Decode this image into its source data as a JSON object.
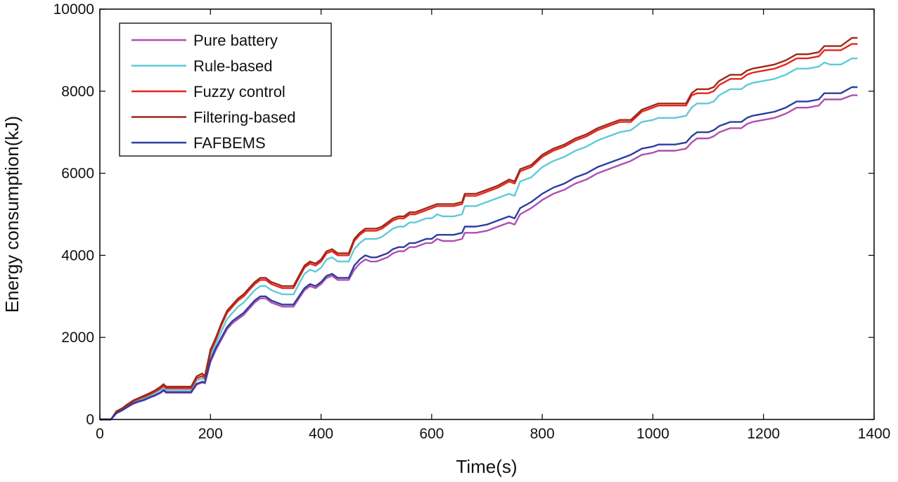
{
  "chart_data": {
    "type": "line",
    "xlabel": "Time(s)",
    "ylabel": "Energy consumption(kJ)",
    "xlim": [
      0,
      1400
    ],
    "ylim": [
      0,
      10000
    ],
    "x_ticks": [
      0,
      200,
      400,
      600,
      800,
      1000,
      1200,
      1400
    ],
    "y_ticks": [
      0,
      2000,
      4000,
      6000,
      8000,
      10000
    ],
    "grid": false,
    "legend_position": "top-left",
    "x": [
      0,
      20,
      30,
      40,
      50,
      60,
      70,
      80,
      90,
      100,
      110,
      115,
      120,
      130,
      140,
      150,
      160,
      165,
      175,
      185,
      190,
      200,
      210,
      220,
      230,
      240,
      250,
      260,
      270,
      280,
      290,
      300,
      310,
      320,
      330,
      340,
      350,
      360,
      370,
      380,
      390,
      400,
      410,
      420,
      430,
      440,
      450,
      460,
      470,
      480,
      490,
      500,
      510,
      520,
      530,
      540,
      550,
      560,
      570,
      580,
      590,
      600,
      610,
      620,
      640,
      655,
      660,
      680,
      700,
      720,
      740,
      750,
      760,
      780,
      800,
      820,
      840,
      860,
      880,
      900,
      920,
      940,
      960,
      980,
      1000,
      1010,
      1020,
      1040,
      1060,
      1070,
      1080,
      1100,
      1110,
      1120,
      1140,
      1160,
      1170,
      1180,
      1200,
      1220,
      1240,
      1260,
      1280,
      1300,
      1310,
      1320,
      1340,
      1360,
      1370
    ],
    "series": [
      {
        "name": "Pure battery",
        "color": "#b04fb0",
        "values": [
          0,
          0,
          150,
          220,
          300,
          380,
          430,
          470,
          530,
          580,
          650,
          700,
          650,
          650,
          650,
          650,
          650,
          650,
          850,
          900,
          880,
          1400,
          1700,
          1950,
          2200,
          2350,
          2450,
          2550,
          2700,
          2850,
          2950,
          2950,
          2850,
          2800,
          2750,
          2750,
          2750,
          2950,
          3150,
          3250,
          3200,
          3300,
          3450,
          3500,
          3400,
          3400,
          3400,
          3650,
          3800,
          3900,
          3850,
          3850,
          3900,
          3950,
          4050,
          4100,
          4100,
          4200,
          4200,
          4250,
          4300,
          4300,
          4400,
          4350,
          4350,
          4400,
          4550,
          4550,
          4600,
          4700,
          4800,
          4750,
          5000,
          5150,
          5350,
          5500,
          5600,
          5750,
          5850,
          6000,
          6100,
          6200,
          6300,
          6450,
          6500,
          6550,
          6550,
          6550,
          6600,
          6750,
          6850,
          6850,
          6900,
          7000,
          7100,
          7100,
          7200,
          7250,
          7300,
          7350,
          7450,
          7600,
          7600,
          7650,
          7800,
          7800,
          7800,
          7900,
          7900
        ]
      },
      {
        "name": "Rule-based",
        "color": "#5fcad8",
        "values": [
          0,
          0,
          170,
          240,
          330,
          420,
          470,
          520,
          580,
          640,
          720,
          780,
          720,
          720,
          720,
          720,
          720,
          720,
          950,
          1000,
          960,
          1550,
          1850,
          2150,
          2450,
          2600,
          2750,
          2850,
          3000,
          3150,
          3250,
          3250,
          3150,
          3100,
          3050,
          3050,
          3050,
          3300,
          3550,
          3650,
          3600,
          3700,
          3900,
          3950,
          3850,
          3850,
          3850,
          4150,
          4300,
          4400,
          4400,
          4400,
          4450,
          4550,
          4650,
          4700,
          4700,
          4800,
          4800,
          4850,
          4900,
          4900,
          5000,
          4950,
          4950,
          5000,
          5200,
          5200,
          5300,
          5400,
          5500,
          5450,
          5800,
          5900,
          6150,
          6300,
          6400,
          6550,
          6650,
          6800,
          6900,
          7000,
          7050,
          7250,
          7300,
          7350,
          7350,
          7350,
          7400,
          7600,
          7700,
          7700,
          7750,
          7900,
          8050,
          8050,
          8150,
          8200,
          8250,
          8300,
          8400,
          8550,
          8550,
          8600,
          8700,
          8650,
          8650,
          8800,
          8800
        ]
      },
      {
        "name": "Fuzzy control",
        "color": "#e8231f",
        "values": [
          0,
          0,
          180,
          250,
          350,
          440,
          500,
          550,
          610,
          680,
          760,
          820,
          760,
          760,
          760,
          760,
          760,
          760,
          1000,
          1060,
          1010,
          1650,
          1950,
          2300,
          2600,
          2750,
          2900,
          3000,
          3150,
          3300,
          3400,
          3400,
          3300,
          3250,
          3200,
          3200,
          3200,
          3450,
          3700,
          3800,
          3750,
          3850,
          4050,
          4100,
          4000,
          4000,
          4000,
          4350,
          4500,
          4600,
          4600,
          4600,
          4650,
          4750,
          4850,
          4900,
          4900,
          5000,
          5000,
          5050,
          5100,
          5150,
          5200,
          5200,
          5200,
          5250,
          5450,
          5450,
          5550,
          5650,
          5800,
          5750,
          6050,
          6150,
          6400,
          6550,
          6650,
          6800,
          6900,
          7050,
          7150,
          7250,
          7250,
          7500,
          7600,
          7650,
          7650,
          7650,
          7650,
          7900,
          7950,
          7950,
          8000,
          8150,
          8300,
          8300,
          8400,
          8450,
          8500,
          8550,
          8650,
          8800,
          8800,
          8850,
          9000,
          9000,
          9000,
          9150,
          9150
        ]
      },
      {
        "name": "Filtering-based",
        "color": "#9a2a1a",
        "values": [
          0,
          0,
          200,
          270,
          370,
          460,
          520,
          580,
          640,
          710,
          800,
          860,
          800,
          800,
          800,
          800,
          800,
          800,
          1050,
          1120,
          1060,
          1700,
          2000,
          2350,
          2650,
          2800,
          2950,
          3050,
          3200,
          3350,
          3450,
          3450,
          3350,
          3300,
          3250,
          3250,
          3250,
          3500,
          3750,
          3850,
          3800,
          3900,
          4100,
          4150,
          4050,
          4050,
          4050,
          4400,
          4550,
          4650,
          4650,
          4650,
          4700,
          4800,
          4900,
          4950,
          4950,
          5050,
          5050,
          5100,
          5150,
          5200,
          5250,
          5250,
          5250,
          5300,
          5500,
          5500,
          5600,
          5700,
          5850,
          5800,
          6100,
          6200,
          6450,
          6600,
          6700,
          6850,
          6950,
          7100,
          7200,
          7300,
          7300,
          7550,
          7650,
          7700,
          7700,
          7700,
          7700,
          7950,
          8050,
          8050,
          8100,
          8250,
          8400,
          8400,
          8500,
          8550,
          8600,
          8650,
          8750,
          8900,
          8900,
          8950,
          9100,
          9100,
          9100,
          9300,
          9300
        ]
      },
      {
        "name": "FAFBEMS",
        "color": "#2c3e9e",
        "values": [
          0,
          0,
          155,
          225,
          310,
          390,
          440,
          480,
          540,
          590,
          660,
          720,
          670,
          670,
          670,
          670,
          670,
          670,
          870,
          920,
          900,
          1450,
          1750,
          2000,
          2250,
          2400,
          2500,
          2600,
          2750,
          2900,
          3000,
          3000,
          2900,
          2850,
          2800,
          2800,
          2800,
          3000,
          3200,
          3300,
          3250,
          3350,
          3500,
          3550,
          3450,
          3450,
          3450,
          3750,
          3900,
          4000,
          3950,
          3950,
          4000,
          4050,
          4150,
          4200,
          4200,
          4300,
          4300,
          4350,
          4400,
          4400,
          4500,
          4500,
          4500,
          4550,
          4700,
          4700,
          4750,
          4850,
          4950,
          4900,
          5150,
          5300,
          5500,
          5650,
          5750,
          5900,
          6000,
          6150,
          6250,
          6350,
          6450,
          6600,
          6650,
          6700,
          6700,
          6700,
          6750,
          6900,
          7000,
          7000,
          7050,
          7150,
          7250,
          7250,
          7350,
          7400,
          7450,
          7500,
          7600,
          7750,
          7750,
          7800,
          7950,
          7950,
          7950,
          8100,
          8100
        ]
      }
    ]
  }
}
